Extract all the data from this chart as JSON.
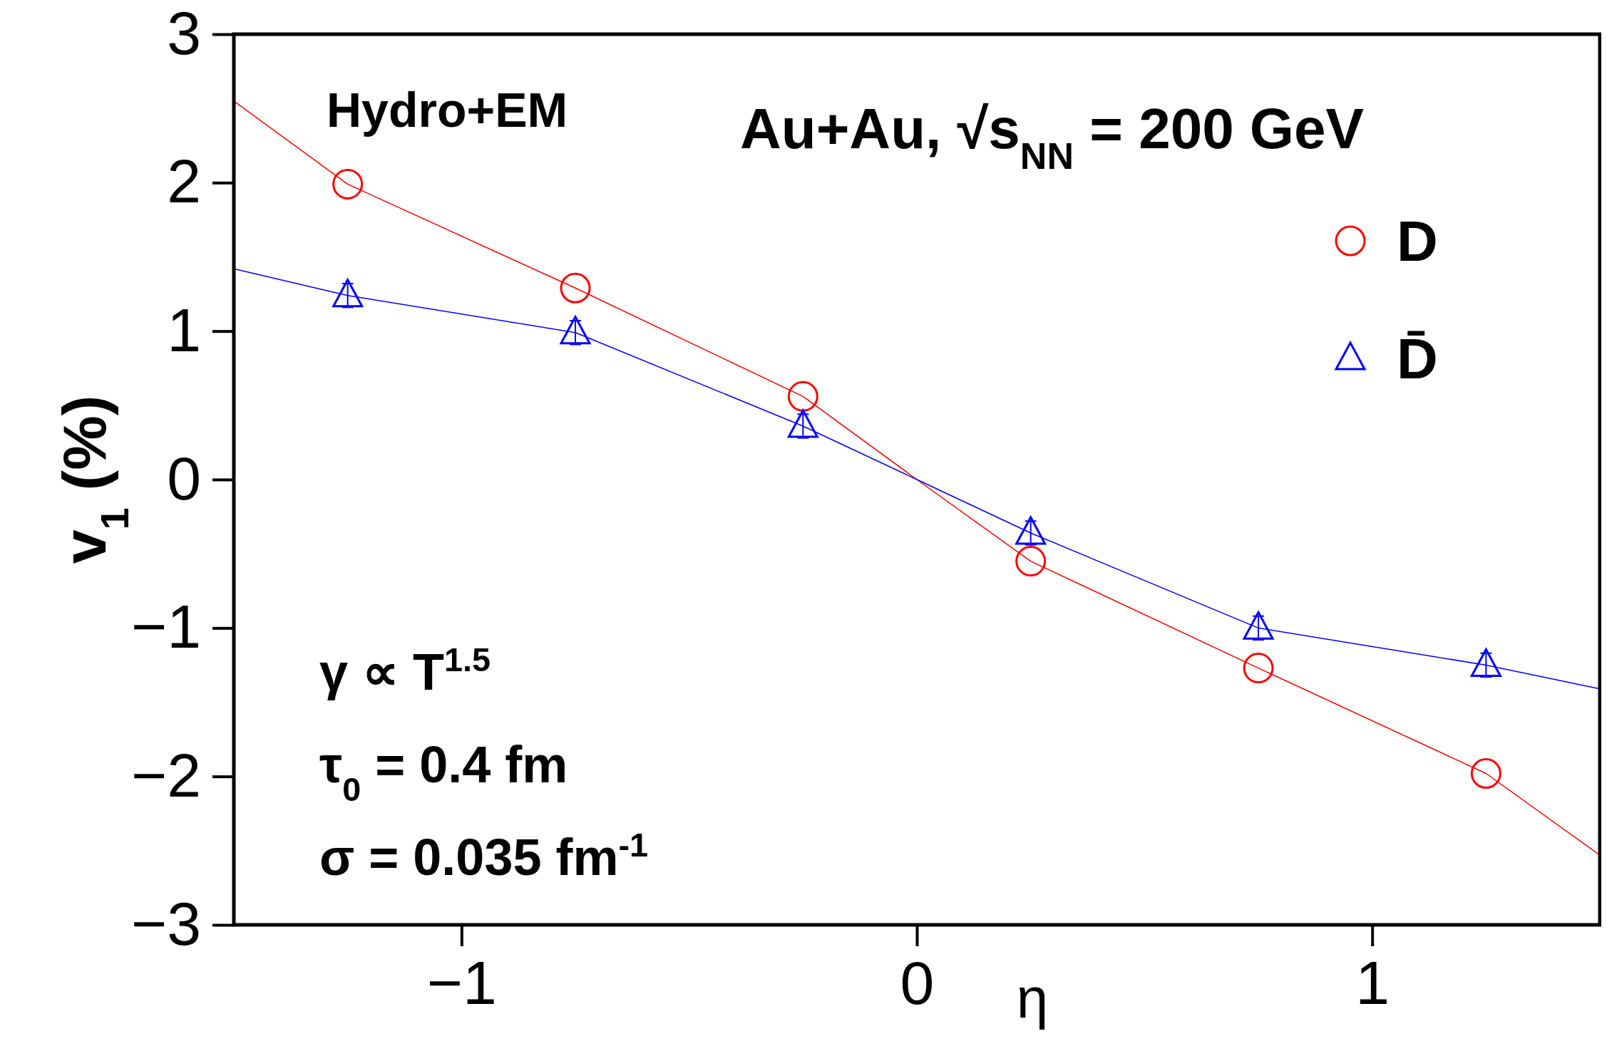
{
  "chart_data": {
    "type": "scatter",
    "xlabel": "η",
    "ylabel": "v$_{1}$ (%)",
    "xlim": [
      -1.5,
      1.5
    ],
    "ylim": [
      -3,
      3
    ],
    "xticks": [
      {
        "value": -1,
        "label": "−1"
      },
      0,
      1
    ],
    "yticks": [
      {
        "value": -3,
        "label": "−3"
      },
      {
        "value": -2,
        "label": "−2"
      },
      {
        "value": -1,
        "label": "−1"
      },
      0,
      1,
      2,
      3
    ],
    "grid": false,
    "legend": "top right",
    "annotations": [
      "Hydro+EM",
      "Au+Au, √s$_{NN}$ = 200 GeV",
      "γ  ∝ T$^{1.5}$",
      "τ$_{0}$ = 0.4 fm",
      "σ = 0.035 fm$^{-1}$"
    ],
    "series": [
      {
        "type": "line",
        "color": "#ff0000",
        "marker": "none",
        "x": [
          -1.5,
          -1.25,
          -0.75,
          -0.25,
          0,
          0.25,
          0.75,
          1.25,
          1.5
        ],
        "values": [
          2.55,
          1.99,
          1.29,
          0.56,
          0,
          -0.55,
          -1.27,
          -1.98,
          -2.53
        ]
      },
      {
        "type": "line",
        "color": "#0000ff",
        "marker": "none",
        "x": [
          -1.5,
          -1.25,
          -0.75,
          -0.25,
          0,
          0.25,
          0.75,
          1.25,
          1.5
        ],
        "values": [
          1.42,
          1.24,
          0.99,
          0.36,
          0,
          -0.36,
          -1.0,
          -1.25,
          -1.41
        ]
      },
      {
        "name": "D",
        "color": "#ff0000",
        "marker": "circle",
        "x": [
          -1.25,
          -0.75,
          -0.25,
          0.25,
          0.75,
          1.25
        ],
        "values": [
          1.99,
          1.29,
          0.56,
          -0.55,
          -1.27,
          -1.98
        ]
      },
      {
        "name": "D̄",
        "color": "#0000ff",
        "marker": "triangle",
        "x": [
          -1.25,
          -0.75,
          -0.25,
          0.25,
          0.75,
          1.25
        ],
        "values": [
          1.24,
          0.99,
          0.36,
          -0.36,
          -1.0,
          -1.25
        ],
        "errors": [
          0.08,
          0.08,
          0.08,
          0.08,
          0.08,
          0.08
        ]
      }
    ]
  }
}
